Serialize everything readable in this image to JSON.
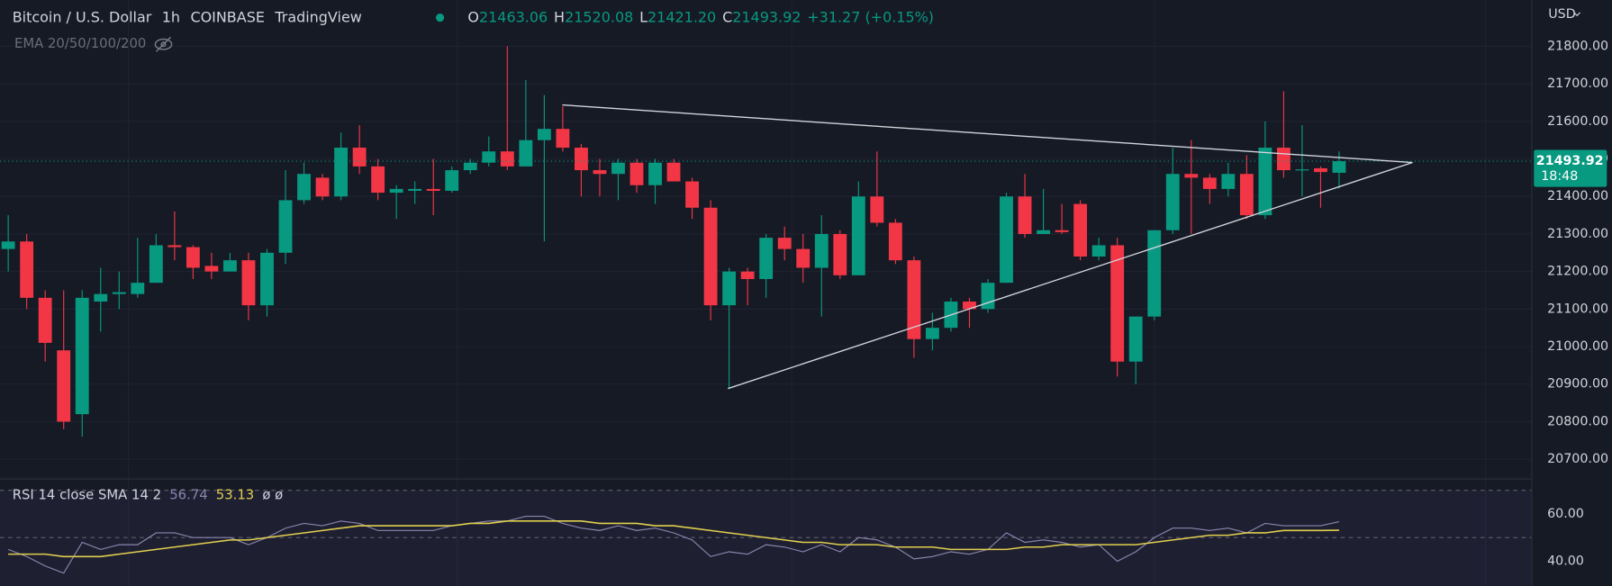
{
  "header": {
    "symbol": "Bitcoin / U.S. Dollar",
    "interval": "1h",
    "exchange": "COINBASE",
    "source": "TradingView",
    "ohlc": [
      {
        "label": "O",
        "value": "21463.06"
      },
      {
        "label": "H",
        "value": "21520.08"
      },
      {
        "label": "L",
        "value": "21421.20"
      },
      {
        "label": "C",
        "value": "21493.92"
      }
    ],
    "change": "+31.27 (+0.15%)",
    "indicator": "EMA 20/50/100/200",
    "currency": "USD",
    "countdown": "18:48"
  },
  "chart_data": [
    {
      "type": "candlestick",
      "up_color": "#089981",
      "down_color": "#f23645",
      "grid": true,
      "ylim": [
        20650,
        21923
      ],
      "yticks": [
        {
          "value": 20700,
          "label": "20700.00"
        },
        {
          "value": 20800,
          "label": "20800.00"
        },
        {
          "value": 20900,
          "label": "20900.00"
        },
        {
          "value": 21000,
          "label": "21000.00"
        },
        {
          "value": 21100,
          "label": "21100.00"
        },
        {
          "value": 21200,
          "label": "21200.00"
        },
        {
          "value": 21300,
          "label": "21300.00"
        },
        {
          "value": 21400,
          "label": "21400.00"
        },
        {
          "value": 21500,
          "label": "21500.00"
        },
        {
          "value": 21600,
          "label": "21600.00"
        },
        {
          "value": 21700,
          "label": "21700.00"
        },
        {
          "value": 21800,
          "label": "21800.00"
        }
      ],
      "open": [
        21260,
        21280,
        21130,
        20990,
        20820,
        21120,
        21140,
        21140,
        21170,
        21270,
        21265,
        21215,
        21200,
        21230,
        21110,
        21250,
        21390,
        21450,
        21400,
        21530,
        21480,
        21410,
        21415,
        21420,
        21415,
        21470,
        21490,
        21520,
        21480,
        21550,
        21580,
        21530,
        21470,
        21460,
        21490,
        21430,
        21490,
        21440,
        21370,
        21110,
        21200,
        21180,
        21290,
        21260,
        21210,
        21300,
        21190,
        21400,
        21330,
        21230,
        21020,
        21050,
        21120,
        21100,
        21170,
        21400,
        21300,
        21310,
        21380,
        21240,
        21270,
        20960,
        21080,
        21310,
        21460,
        21450,
        21420,
        21460,
        21350,
        21530,
        21470,
        21475,
        21463.06
      ],
      "high": [
        21350,
        21300,
        21150,
        21150,
        21150,
        21210,
        21200,
        21290,
        21300,
        21360,
        21270,
        21250,
        21250,
        21250,
        21260,
        21470,
        21490,
        21460,
        21570,
        21590,
        21500,
        21430,
        21440,
        21500,
        21480,
        21500,
        21560,
        21800,
        21710,
        21670,
        21640,
        21540,
        21500,
        21500,
        21500,
        21500,
        21500,
        21450,
        21390,
        21210,
        21210,
        21300,
        21320,
        21300,
        21350,
        21310,
        21440,
        21520,
        21340,
        21240,
        21090,
        21130,
        21130,
        21180,
        21410,
        21460,
        21420,
        21380,
        21390,
        21290,
        21290,
        21080,
        21310,
        21530,
        21550,
        21460,
        21490,
        21510,
        21600,
        21680,
        21590,
        21480,
        21520.08
      ],
      "low": [
        21200,
        21100,
        20960,
        20780,
        20760,
        21040,
        21100,
        21130,
        21170,
        21230,
        21180,
        21180,
        21200,
        21070,
        21080,
        21220,
        21380,
        21390,
        21390,
        21460,
        21390,
        21340,
        21380,
        21350,
        21410,
        21460,
        21480,
        21470,
        21480,
        21280,
        21520,
        21400,
        21400,
        21390,
        21410,
        21380,
        21440,
        21340,
        21070,
        20890,
        21110,
        21130,
        21230,
        21170,
        21080,
        21180,
        21190,
        21320,
        21220,
        20970,
        20990,
        21040,
        21050,
        21090,
        21170,
        21290,
        21300,
        21300,
        21230,
        21230,
        20920,
        20900,
        21070,
        21300,
        21300,
        21380,
        21400,
        21340,
        21340,
        21450,
        21400,
        21370,
        21421.2
      ],
      "close": [
        21280,
        21130,
        21010,
        20800,
        21130,
        21140,
        21145,
        21170,
        21270,
        21265,
        21210,
        21200,
        21230,
        21110,
        21250,
        21390,
        21460,
        21400,
        21530,
        21480,
        21410,
        21420,
        21420,
        21415,
        21470,
        21490,
        21520,
        21480,
        21550,
        21580,
        21530,
        21470,
        21460,
        21490,
        21430,
        21490,
        21440,
        21370,
        21110,
        21200,
        21180,
        21290,
        21260,
        21210,
        21300,
        21190,
        21400,
        21330,
        21230,
        21020,
        21050,
        21120,
        21100,
        21170,
        21400,
        21300,
        21310,
        21305,
        21240,
        21270,
        20960,
        21080,
        21310,
        21460,
        21450,
        21420,
        21460,
        21350,
        21530,
        21470,
        21472,
        21465,
        21493.92
      ]
    },
    {
      "type": "line",
      "title": "RSI 14 close SMA 14 2",
      "suffix": "ø ø",
      "ylim": [
        29.6,
        70
      ],
      "bands": [
        70,
        50
      ],
      "yticks": [
        {
          "value": 40,
          "label": "40.00"
        },
        {
          "value": 60,
          "label": "60.00"
        }
      ],
      "series": [
        {
          "color": "#8b86ad",
          "values": [
            45,
            42,
            38,
            35,
            48,
            45,
            47,
            47,
            52,
            52,
            50,
            50,
            50,
            47,
            50,
            54,
            56,
            55,
            57,
            56,
            53,
            53,
            53,
            53,
            55,
            56,
            57,
            57,
            59,
            59,
            56,
            54,
            53,
            55,
            53,
            54,
            52,
            49,
            42,
            44,
            43,
            47,
            46,
            44,
            47,
            44,
            50,
            49,
            46,
            41,
            42,
            44,
            43,
            45,
            52,
            48,
            49,
            48,
            46,
            47,
            40,
            44,
            50,
            54,
            54,
            53,
            54,
            52,
            56,
            55,
            55,
            55,
            56.74
          ]
        },
        {
          "color": "#e0cf4e",
          "values": [
            43,
            43,
            43,
            42,
            42,
            42,
            43,
            44,
            45,
            46,
            47,
            48,
            49,
            49,
            50,
            51,
            52,
            53,
            54,
            55,
            55,
            55,
            55,
            55,
            55,
            56,
            56,
            57,
            57,
            57,
            57,
            57,
            56,
            56,
            56,
            55,
            55,
            54,
            53,
            52,
            51,
            50,
            49,
            48,
            48,
            47,
            47,
            47,
            46,
            46,
            46,
            45,
            45,
            45,
            45,
            46,
            46,
            47,
            47,
            47,
            47,
            47,
            48,
            49,
            50,
            51,
            51,
            52,
            52,
            53,
            53,
            53,
            53.13
          ]
        }
      ]
    }
  ]
}
